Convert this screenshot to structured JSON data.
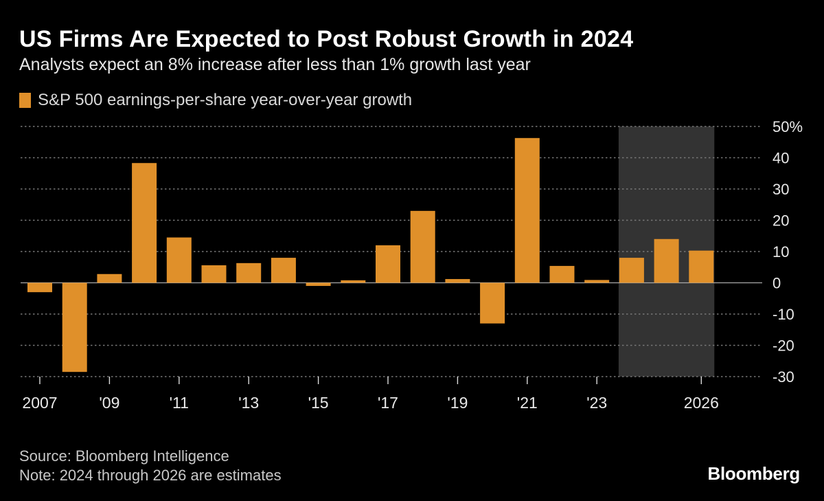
{
  "title": "US Firms Are Expected to Post Robust Growth in 2024",
  "subtitle": "Analysts expect an 8% increase after less than 1% growth last year",
  "footer": {
    "source": "Source: Bloomberg Intelligence",
    "note": "Note: 2024 through 2026 are estimates"
  },
  "brand": "Bloomberg",
  "colors": {
    "bar": "#e0902a",
    "background": "#000000",
    "shade": "#333333",
    "grid": "#777777"
  },
  "chart_data": {
    "type": "bar",
    "title": "US Firms Are Expected to Post Robust Growth in 2024",
    "subtitle": "Analysts expect an 8% increase after less than 1% growth last year",
    "xlabel": "",
    "ylabel": "",
    "categories": [
      2007,
      2008,
      2009,
      2010,
      2011,
      2012,
      2013,
      2014,
      2015,
      2016,
      2017,
      2018,
      2019,
      2020,
      2021,
      2022,
      2023,
      2024,
      2025,
      2026
    ],
    "series": [
      {
        "name": "S&P 500 earnings-per-share year-over-year growth",
        "values": [
          -3.0,
          -28.5,
          2.8,
          38.3,
          14.5,
          5.6,
          6.3,
          8.0,
          -1.0,
          0.8,
          12.0,
          23.0,
          1.2,
          -13.0,
          46.3,
          5.4,
          0.9,
          8.0,
          14.0,
          10.3
        ]
      }
    ],
    "ylim": [
      -30,
      50
    ],
    "yticks": [
      50,
      40,
      30,
      20,
      10,
      0,
      -10,
      -20,
      -30
    ],
    "ytick_labels": [
      "50%",
      "40",
      "30",
      "20",
      "10",
      "0",
      "-10",
      "-20",
      "-30"
    ],
    "xtick_labels": [
      {
        "year": 2007,
        "label": "2007"
      },
      {
        "year": 2009,
        "label": "'09"
      },
      {
        "year": 2011,
        "label": "'11"
      },
      {
        "year": 2013,
        "label": "'13"
      },
      {
        "year": 2015,
        "label": "'15"
      },
      {
        "year": 2017,
        "label": "'17"
      },
      {
        "year": 2019,
        "label": "'19"
      },
      {
        "year": 2021,
        "label": "'21"
      },
      {
        "year": 2023,
        "label": "'23"
      },
      {
        "year": 2026,
        "label": "2026"
      }
    ],
    "shaded_range": [
      2024,
      2026
    ],
    "grid": true,
    "legend": "top-left"
  }
}
